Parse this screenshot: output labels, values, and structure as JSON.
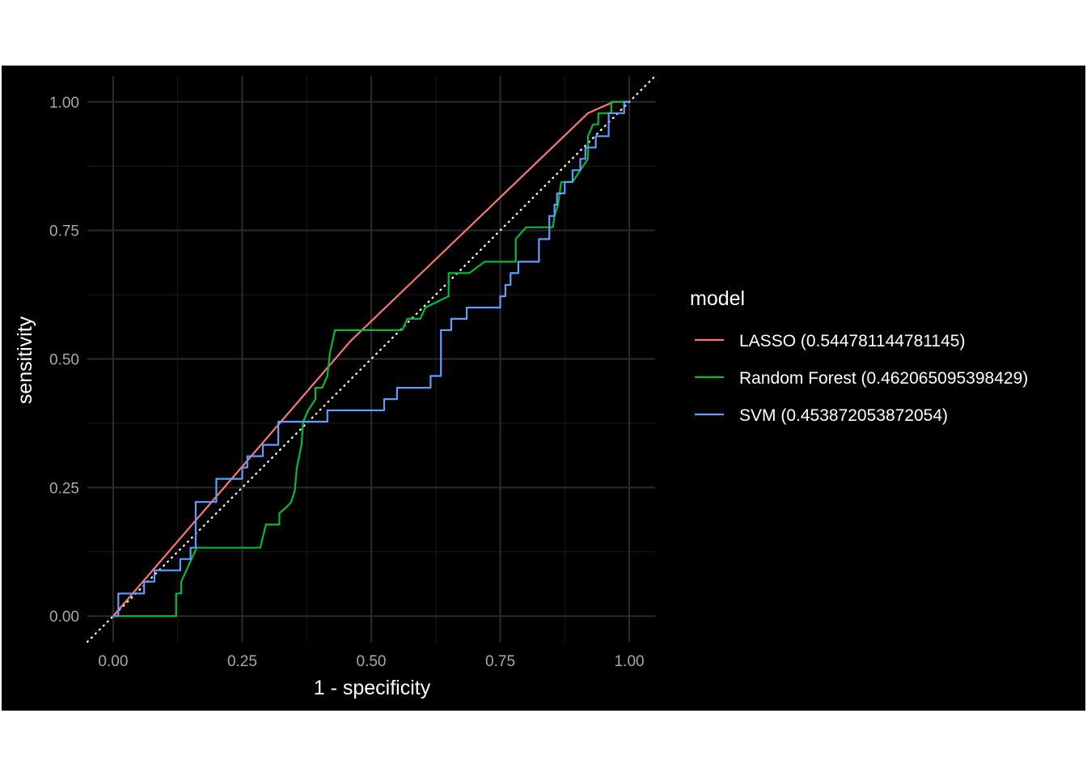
{
  "chart_data": {
    "type": "line",
    "title": "",
    "xlabel": "1 - specificity",
    "ylabel": "sensitivity",
    "xlim": [
      -0.05,
      1.05
    ],
    "ylim": [
      -0.05,
      1.05
    ],
    "x_ticks": [
      "0.00",
      "0.25",
      "0.50",
      "0.75",
      "1.00"
    ],
    "y_ticks": [
      "0.00",
      "0.25",
      "0.50",
      "0.75",
      "1.00"
    ],
    "grid": true,
    "background": "#000000",
    "reference_line": {
      "style": "dotted",
      "color": "#ffffff",
      "from": [
        -0.05,
        -0.05
      ],
      "to": [
        1.05,
        1.05
      ]
    },
    "legend": {
      "title": "model",
      "position": "right"
    },
    "series": [
      {
        "name": "LASSO (0.544781144781145)",
        "color": "#F8766D",
        "points": [
          [
            0.0,
            0.0
          ],
          [
            0.46,
            0.535
          ],
          [
            0.92,
            0.978
          ],
          [
            0.97,
            1.0
          ],
          [
            1.0,
            1.0
          ]
        ]
      },
      {
        "name": "Random Forest (0.462065095398429)",
        "color": "#00BA38",
        "points": [
          [
            0.0,
            0.0
          ],
          [
            0.122,
            0.0
          ],
          [
            0.122,
            0.044
          ],
          [
            0.132,
            0.044
          ],
          [
            0.132,
            0.067
          ],
          [
            0.142,
            0.089
          ],
          [
            0.152,
            0.111
          ],
          [
            0.162,
            0.133
          ],
          [
            0.285,
            0.133
          ],
          [
            0.296,
            0.178
          ],
          [
            0.322,
            0.178
          ],
          [
            0.322,
            0.2
          ],
          [
            0.335,
            0.211
          ],
          [
            0.345,
            0.222
          ],
          [
            0.352,
            0.244
          ],
          [
            0.356,
            0.289
          ],
          [
            0.365,
            0.333
          ],
          [
            0.368,
            0.378
          ],
          [
            0.378,
            0.4
          ],
          [
            0.392,
            0.422
          ],
          [
            0.392,
            0.444
          ],
          [
            0.405,
            0.444
          ],
          [
            0.415,
            0.467
          ],
          [
            0.42,
            0.511
          ],
          [
            0.43,
            0.556
          ],
          [
            0.56,
            0.556
          ],
          [
            0.57,
            0.578
          ],
          [
            0.595,
            0.578
          ],
          [
            0.605,
            0.6
          ],
          [
            0.65,
            0.622
          ],
          [
            0.65,
            0.667
          ],
          [
            0.69,
            0.667
          ],
          [
            0.72,
            0.689
          ],
          [
            0.78,
            0.689
          ],
          [
            0.78,
            0.733
          ],
          [
            0.8,
            0.756
          ],
          [
            0.852,
            0.756
          ],
          [
            0.855,
            0.778
          ],
          [
            0.862,
            0.8
          ],
          [
            0.868,
            0.844
          ],
          [
            0.89,
            0.844
          ],
          [
            0.905,
            0.867
          ],
          [
            0.92,
            0.889
          ],
          [
            0.92,
            0.933
          ],
          [
            0.93,
            0.956
          ],
          [
            0.94,
            0.956
          ],
          [
            0.94,
            0.978
          ],
          [
            0.965,
            0.978
          ],
          [
            0.965,
            1.0
          ],
          [
            1.0,
            1.0
          ]
        ]
      },
      {
        "name": "SVM (0.453872053872054)",
        "color": "#619CFF",
        "points": [
          [
            0.0,
            0.0
          ],
          [
            0.01,
            0.0
          ],
          [
            0.01,
            0.044
          ],
          [
            0.06,
            0.044
          ],
          [
            0.06,
            0.067
          ],
          [
            0.08,
            0.067
          ],
          [
            0.08,
            0.089
          ],
          [
            0.13,
            0.089
          ],
          [
            0.13,
            0.111
          ],
          [
            0.15,
            0.111
          ],
          [
            0.15,
            0.133
          ],
          [
            0.16,
            0.133
          ],
          [
            0.16,
            0.222
          ],
          [
            0.2,
            0.222
          ],
          [
            0.2,
            0.267
          ],
          [
            0.25,
            0.267
          ],
          [
            0.25,
            0.289
          ],
          [
            0.26,
            0.289
          ],
          [
            0.26,
            0.311
          ],
          [
            0.29,
            0.311
          ],
          [
            0.29,
            0.333
          ],
          [
            0.32,
            0.333
          ],
          [
            0.32,
            0.378
          ],
          [
            0.415,
            0.378
          ],
          [
            0.415,
            0.4
          ],
          [
            0.525,
            0.4
          ],
          [
            0.525,
            0.422
          ],
          [
            0.55,
            0.422
          ],
          [
            0.55,
            0.444
          ],
          [
            0.615,
            0.444
          ],
          [
            0.615,
            0.467
          ],
          [
            0.635,
            0.467
          ],
          [
            0.635,
            0.556
          ],
          [
            0.655,
            0.556
          ],
          [
            0.655,
            0.578
          ],
          [
            0.685,
            0.578
          ],
          [
            0.685,
            0.6
          ],
          [
            0.75,
            0.6
          ],
          [
            0.75,
            0.622
          ],
          [
            0.76,
            0.622
          ],
          [
            0.76,
            0.644
          ],
          [
            0.77,
            0.644
          ],
          [
            0.77,
            0.667
          ],
          [
            0.785,
            0.667
          ],
          [
            0.785,
            0.689
          ],
          [
            0.825,
            0.689
          ],
          [
            0.825,
            0.733
          ],
          [
            0.845,
            0.733
          ],
          [
            0.845,
            0.778
          ],
          [
            0.855,
            0.778
          ],
          [
            0.855,
            0.8
          ],
          [
            0.86,
            0.8
          ],
          [
            0.86,
            0.822
          ],
          [
            0.875,
            0.822
          ],
          [
            0.875,
            0.844
          ],
          [
            0.89,
            0.844
          ],
          [
            0.89,
            0.867
          ],
          [
            0.905,
            0.867
          ],
          [
            0.905,
            0.889
          ],
          [
            0.915,
            0.889
          ],
          [
            0.915,
            0.911
          ],
          [
            0.935,
            0.911
          ],
          [
            0.935,
            0.933
          ],
          [
            0.96,
            0.933
          ],
          [
            0.96,
            0.978
          ],
          [
            0.99,
            0.978
          ],
          [
            0.99,
            1.0
          ],
          [
            1.0,
            1.0
          ]
        ]
      }
    ]
  }
}
